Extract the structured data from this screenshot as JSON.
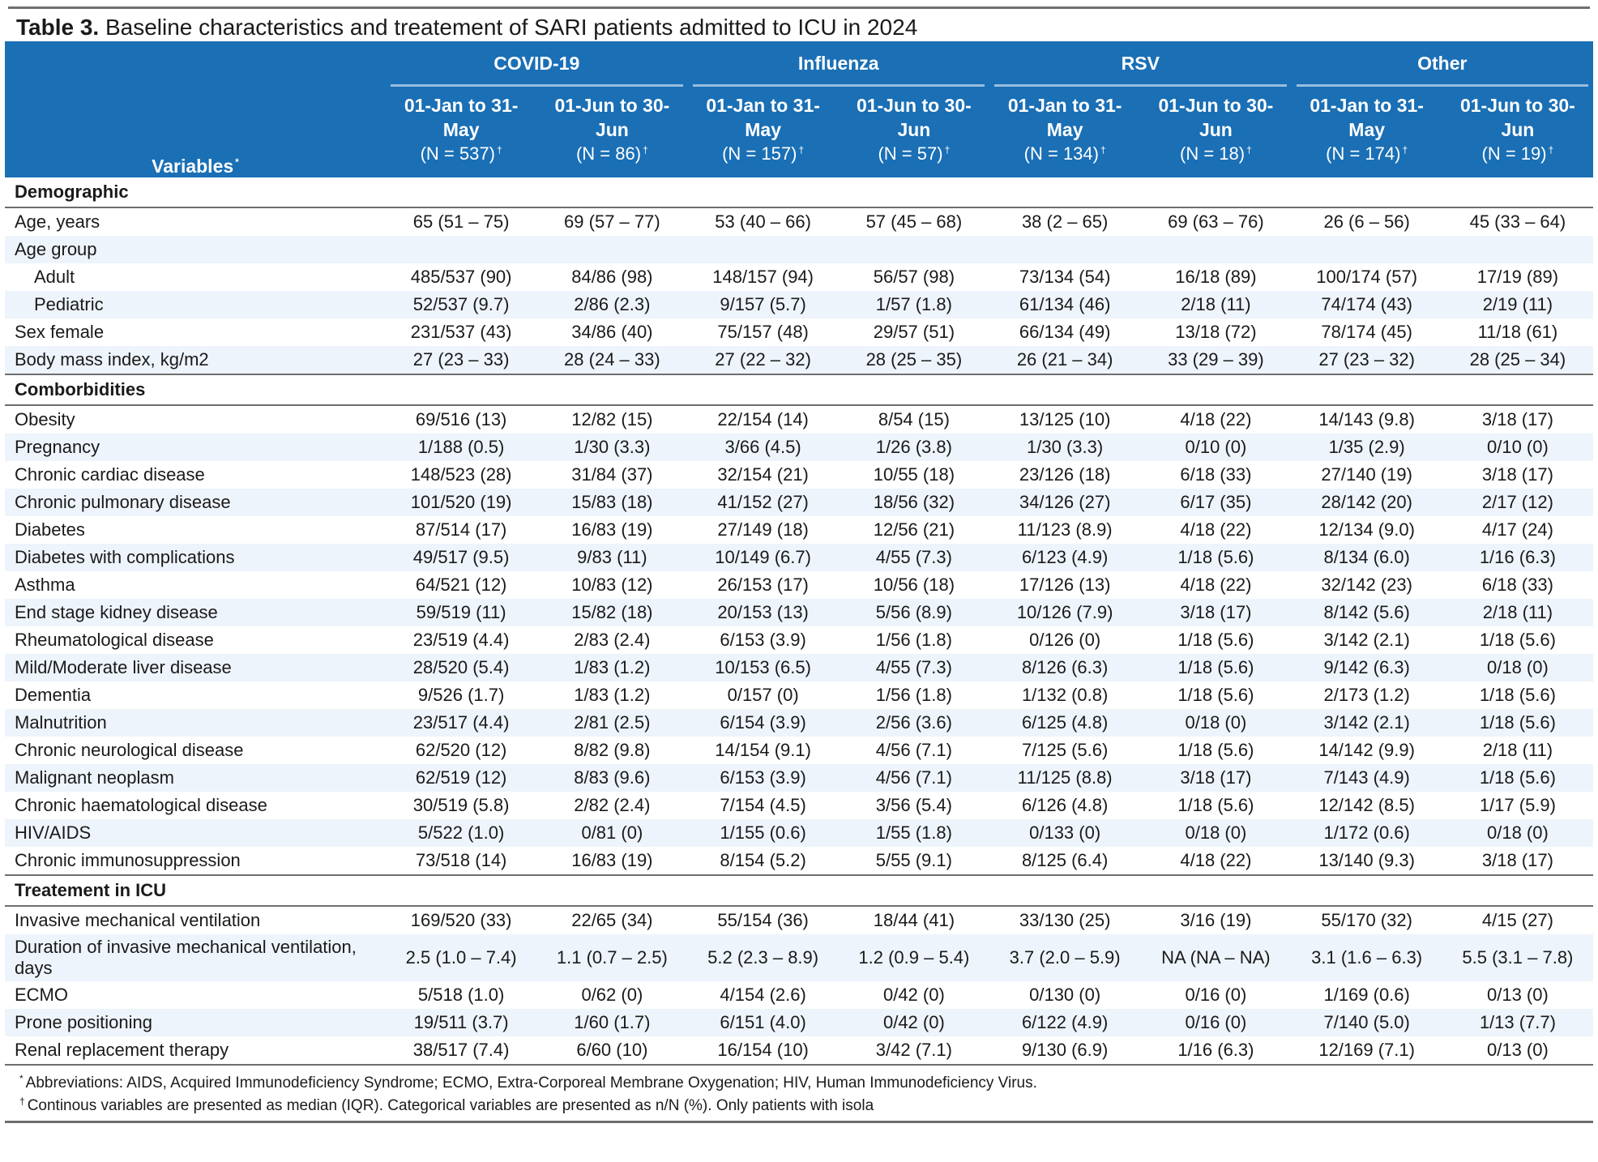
{
  "caption": {
    "label": "Table 3.",
    "text": "Baseline characteristics and treatement of SARI patients admitted to ICU in 2024"
  },
  "header": {
    "variables_label": "Variables",
    "variables_mark": "*",
    "groups": [
      {
        "name": "COVID-19",
        "periods": [
          {
            "label": "01-Jan to 31-May",
            "n": "(N = 537)",
            "mark": "†"
          },
          {
            "label": "01-Jun to 30-Jun",
            "n": "(N = 86)",
            "mark": "†"
          }
        ]
      },
      {
        "name": "Influenza",
        "periods": [
          {
            "label": "01-Jan to 31-May",
            "n": "(N = 157)",
            "mark": "†"
          },
          {
            "label": "01-Jun to 30-Jun",
            "n": "(N = 57)",
            "mark": "†"
          }
        ]
      },
      {
        "name": "RSV",
        "periods": [
          {
            "label": "01-Jan to 31-May",
            "n": "(N = 134)",
            "mark": "†"
          },
          {
            "label": "01-Jun to 30-Jun",
            "n": "(N = 18)",
            "mark": "†"
          }
        ]
      },
      {
        "name": "Other",
        "periods": [
          {
            "label": "01-Jan to 31-May",
            "n": "(N = 174)",
            "mark": "†"
          },
          {
            "label": "01-Jun to 30-Jun",
            "n": "(N = 19)",
            "mark": "†"
          }
        ]
      }
    ]
  },
  "sections": [
    {
      "title": "Demographic",
      "rows": [
        {
          "label": "Age, years",
          "values": [
            "65 (51 – 75)",
            "69 (57 – 77)",
            "53 (40 – 66)",
            "57 (45 – 68)",
            "38 (2 – 65)",
            "69 (63 – 76)",
            "26 (6 – 56)",
            "45 (33 – 64)"
          ]
        },
        {
          "label": "Age group",
          "values": [
            "",
            "",
            "",
            "",
            "",
            "",
            "",
            ""
          ]
        },
        {
          "label": "Adult",
          "indent": true,
          "values": [
            "485/537 (90)",
            "84/86 (98)",
            "148/157 (94)",
            "56/57 (98)",
            "73/134 (54)",
            "16/18 (89)",
            "100/174 (57)",
            "17/19 (89)"
          ]
        },
        {
          "label": "Pediatric",
          "indent": true,
          "values": [
            "52/537 (9.7)",
            "2/86 (2.3)",
            "9/157 (5.7)",
            "1/57 (1.8)",
            "61/134 (46)",
            "2/18 (11)",
            "74/174 (43)",
            "2/19 (11)"
          ]
        },
        {
          "label": "Sex female",
          "values": [
            "231/537 (43)",
            "34/86 (40)",
            "75/157 (48)",
            "29/57 (51)",
            "66/134 (49)",
            "13/18 (72)",
            "78/174 (45)",
            "11/18 (61)"
          ]
        },
        {
          "label": "Body mass index, kg/m2",
          "values": [
            "27 (23 – 33)",
            "28 (24 – 33)",
            "27 (22 – 32)",
            "28 (25 – 35)",
            "26 (21 – 34)",
            "33 (29 – 39)",
            "27 (23 – 32)",
            "28 (25 – 34)"
          ]
        }
      ]
    },
    {
      "title": "Comborbidities",
      "rows": [
        {
          "label": "Obesity",
          "values": [
            "69/516 (13)",
            "12/82 (15)",
            "22/154 (14)",
            "8/54 (15)",
            "13/125 (10)",
            "4/18 (22)",
            "14/143 (9.8)",
            "3/18 (17)"
          ]
        },
        {
          "label": "Pregnancy",
          "values": [
            "1/188 (0.5)",
            "1/30 (3.3)",
            "3/66 (4.5)",
            "1/26 (3.8)",
            "1/30 (3.3)",
            "0/10 (0)",
            "1/35 (2.9)",
            "0/10 (0)"
          ]
        },
        {
          "label": "Chronic cardiac disease",
          "values": [
            "148/523 (28)",
            "31/84 (37)",
            "32/154 (21)",
            "10/55 (18)",
            "23/126 (18)",
            "6/18 (33)",
            "27/140 (19)",
            "3/18 (17)"
          ]
        },
        {
          "label": "Chronic pulmonary disease",
          "values": [
            "101/520 (19)",
            "15/83 (18)",
            "41/152 (27)",
            "18/56 (32)",
            "34/126 (27)",
            "6/17 (35)",
            "28/142 (20)",
            "2/17 (12)"
          ]
        },
        {
          "label": "Diabetes",
          "values": [
            "87/514 (17)",
            "16/83 (19)",
            "27/149 (18)",
            "12/56 (21)",
            "11/123 (8.9)",
            "4/18 (22)",
            "12/134 (9.0)",
            "4/17 (24)"
          ]
        },
        {
          "label": "Diabetes with complications",
          "values": [
            "49/517 (9.5)",
            "9/83 (11)",
            "10/149 (6.7)",
            "4/55 (7.3)",
            "6/123 (4.9)",
            "1/18 (5.6)",
            "8/134 (6.0)",
            "1/16 (6.3)"
          ]
        },
        {
          "label": "Asthma",
          "values": [
            "64/521 (12)",
            "10/83 (12)",
            "26/153 (17)",
            "10/56 (18)",
            "17/126 (13)",
            "4/18 (22)",
            "32/142 (23)",
            "6/18 (33)"
          ]
        },
        {
          "label": "End stage kidney disease",
          "values": [
            "59/519 (11)",
            "15/82 (18)",
            "20/153 (13)",
            "5/56 (8.9)",
            "10/126 (7.9)",
            "3/18 (17)",
            "8/142 (5.6)",
            "2/18 (11)"
          ]
        },
        {
          "label": "Rheumatological disease",
          "values": [
            "23/519 (4.4)",
            "2/83 (2.4)",
            "6/153 (3.9)",
            "1/56 (1.8)",
            "0/126 (0)",
            "1/18 (5.6)",
            "3/142 (2.1)",
            "1/18 (5.6)"
          ]
        },
        {
          "label": "Mild/Moderate liver disease",
          "values": [
            "28/520 (5.4)",
            "1/83 (1.2)",
            "10/153 (6.5)",
            "4/55 (7.3)",
            "8/126 (6.3)",
            "1/18 (5.6)",
            "9/142 (6.3)",
            "0/18 (0)"
          ]
        },
        {
          "label": "Dementia",
          "values": [
            "9/526 (1.7)",
            "1/83 (1.2)",
            "0/157 (0)",
            "1/56 (1.8)",
            "1/132 (0.8)",
            "1/18 (5.6)",
            "2/173 (1.2)",
            "1/18 (5.6)"
          ]
        },
        {
          "label": "Malnutrition",
          "values": [
            "23/517 (4.4)",
            "2/81 (2.5)",
            "6/154 (3.9)",
            "2/56 (3.6)",
            "6/125 (4.8)",
            "0/18 (0)",
            "3/142 (2.1)",
            "1/18 (5.6)"
          ]
        },
        {
          "label": "Chronic neurological disease",
          "values": [
            "62/520 (12)",
            "8/82 (9.8)",
            "14/154 (9.1)",
            "4/56 (7.1)",
            "7/125 (5.6)",
            "1/18 (5.6)",
            "14/142 (9.9)",
            "2/18 (11)"
          ]
        },
        {
          "label": "Malignant neoplasm",
          "values": [
            "62/519 (12)",
            "8/83 (9.6)",
            "6/153 (3.9)",
            "4/56 (7.1)",
            "11/125 (8.8)",
            "3/18 (17)",
            "7/143 (4.9)",
            "1/18 (5.6)"
          ]
        },
        {
          "label": "Chronic haematological disease",
          "values": [
            "30/519 (5.8)",
            "2/82 (2.4)",
            "7/154 (4.5)",
            "3/56 (5.4)",
            "6/126 (4.8)",
            "1/18 (5.6)",
            "12/142 (8.5)",
            "1/17 (5.9)"
          ]
        },
        {
          "label": "HIV/AIDS",
          "values": [
            "5/522 (1.0)",
            "0/81 (0)",
            "1/155 (0.6)",
            "1/55 (1.8)",
            "0/133 (0)",
            "0/18 (0)",
            "1/172 (0.6)",
            "0/18 (0)"
          ]
        },
        {
          "label": "Chronic immunosuppression",
          "values": [
            "73/518 (14)",
            "16/83 (19)",
            "8/154 (5.2)",
            "5/55 (9.1)",
            "8/125 (6.4)",
            "4/18 (22)",
            "13/140 (9.3)",
            "3/18 (17)"
          ]
        }
      ]
    },
    {
      "title": "Treatement in ICU",
      "rows": [
        {
          "label": "Invasive mechanical ventilation",
          "values": [
            "169/520 (33)",
            "22/65 (34)",
            "55/154 (36)",
            "18/44 (41)",
            "33/130 (25)",
            "3/16 (19)",
            "55/170 (32)",
            "4/15 (27)"
          ]
        },
        {
          "label": "Duration of invasive mechanical ventilation, days",
          "two_line": true,
          "values": [
            "2.5 (1.0 – 7.4)",
            "1.1 (0.7 – 2.5)",
            "5.2 (2.3 – 8.9)",
            "1.2 (0.9 – 5.4)",
            "3.7 (2.0 – 5.9)",
            "NA (NA – NA)",
            "3.1 (1.6 – 6.3)",
            "5.5 (3.1 – 7.8)"
          ]
        },
        {
          "label": "ECMO",
          "values": [
            "5/518 (1.0)",
            "0/62 (0)",
            "4/154 (2.6)",
            "0/42 (0)",
            "0/130 (0)",
            "0/16 (0)",
            "1/169 (0.6)",
            "0/13 (0)"
          ]
        },
        {
          "label": "Prone positioning",
          "values": [
            "19/511 (3.7)",
            "1/60 (1.7)",
            "6/151 (4.0)",
            "0/42 (0)",
            "6/122 (4.9)",
            "0/16 (0)",
            "7/140 (5.0)",
            "1/13 (7.7)"
          ]
        },
        {
          "label": "Renal replacement therapy",
          "values": [
            "38/517 (7.4)",
            "6/60 (10)",
            "16/154 (10)",
            "3/42 (7.1)",
            "9/130 (6.9)",
            "1/16 (6.3)",
            "12/169 (7.1)",
            "0/13 (0)"
          ]
        }
      ]
    }
  ],
  "footnotes": [
    {
      "mark": "*",
      "text": "Abbreviations: AIDS, Acquired Immunodeficiency Syndrome; ECMO, Extra-Corporeal Membrane Oxygenation; HIV, Human Immunodeficiency Virus."
    },
    {
      "mark": "†",
      "text": "Continous variables are presented as median (IQR). Categorical variables are presented as n/N (%). Only patients with isola"
    }
  ]
}
